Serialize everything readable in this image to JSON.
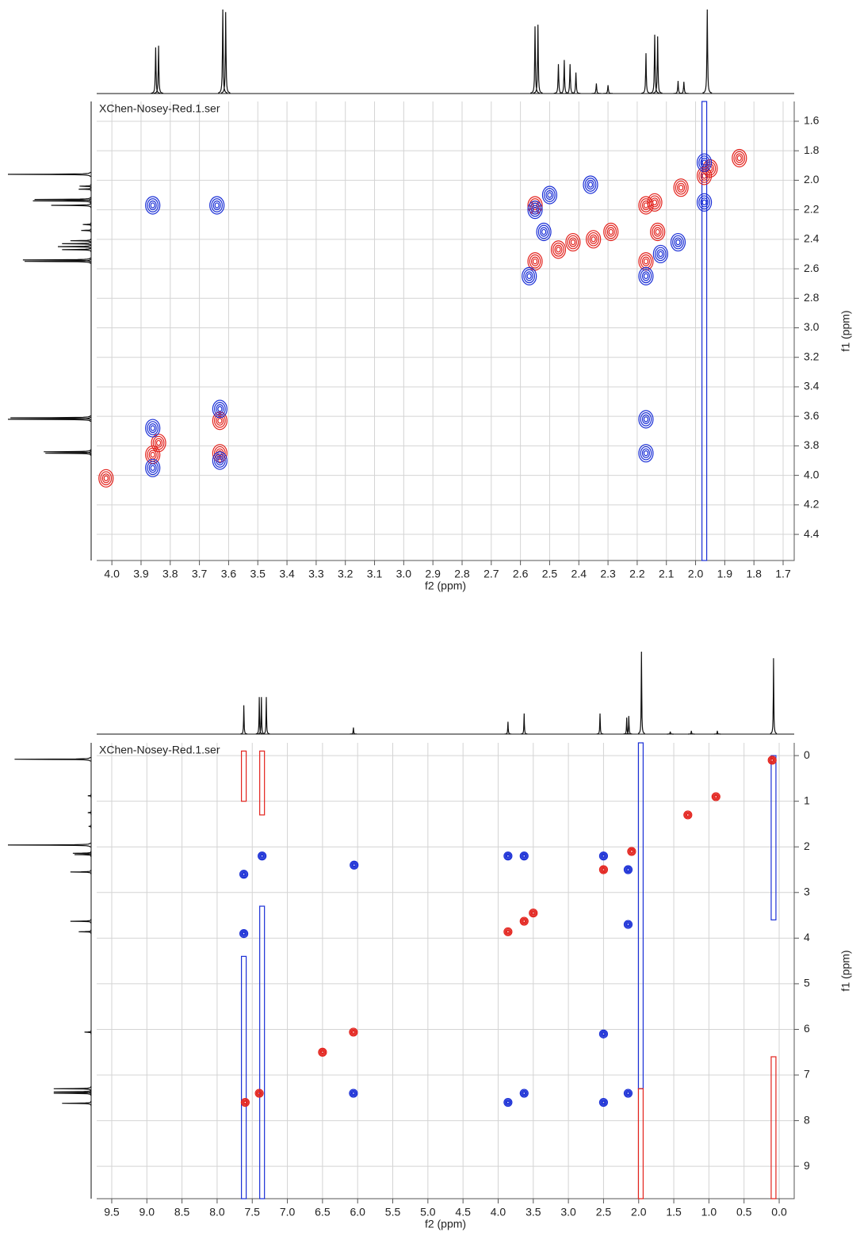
{
  "chart_data": [
    {
      "type": "nmr2d",
      "title": "XChen-Nosey-Red.1.ser",
      "xlabel": "f2 (ppm)",
      "ylabel": "f1 (ppm)",
      "xlim": [
        4.052,
        1.662
      ],
      "ylim": [
        1.466,
        4.577
      ],
      "xticks": [
        {
          "value": 4,
          "label": "4.0"
        },
        3.9,
        3.8,
        3.7,
        3.6,
        3.5,
        3.4,
        3.3,
        3.2,
        3.1,
        {
          "value": 3,
          "label": "3.0"
        },
        2.9,
        2.8,
        2.7,
        2.6,
        2.5,
        2.4,
        2.3,
        2.2,
        2.1,
        {
          "value": 2,
          "label": "2.0"
        },
        1.9,
        1.8,
        1.7
      ],
      "yticks": [
        1.6,
        1.8,
        {
          "value": 2,
          "label": "2.0"
        },
        2.2,
        2.4,
        2.6,
        2.8,
        {
          "value": 3,
          "label": "3.0"
        },
        3.2,
        3.4,
        3.6,
        3.8,
        {
          "value": 4,
          "label": "4.0"
        },
        4.2,
        4.4
      ],
      "grid": true,
      "series": [
        {
          "color": "#e3221c",
          "x": [
            3.86,
            3.63,
            2.55,
            2.47,
            2.42,
            2.35,
            2.29,
            2.17,
            2.14,
            2.05,
            1.97,
            1.95,
            1.85,
            3.84,
            3.63,
            2.55,
            2.17,
            2.13,
            4.02
          ],
          "y": [
            3.86,
            3.63,
            2.55,
            2.47,
            2.42,
            2.4,
            2.35,
            2.17,
            2.15,
            2.05,
            1.97,
            1.92,
            1.85,
            3.78,
            3.85,
            2.17,
            2.55,
            2.35,
            4.02
          ]
        },
        {
          "color": "#1a2fd6",
          "x": [
            3.86,
            3.64,
            3.86,
            3.86,
            3.63,
            3.63,
            2.55,
            2.5,
            2.52,
            2.57,
            2.17,
            2.17,
            2.12,
            2.06,
            2.36,
            2.17,
            1.97,
            1.97
          ],
          "y": [
            2.17,
            2.17,
            3.68,
            3.95,
            3.55,
            3.9,
            2.2,
            2.1,
            2.35,
            2.65,
            3.62,
            3.85,
            2.5,
            2.42,
            2.03,
            2.65,
            1.88,
            2.15
          ]
        }
      ],
      "streaks": [
        {
          "color": "#1a2fd6",
          "x": 1.97,
          "y": [
            1.466,
            4.577
          ]
        }
      ],
      "projection": {
        "color": "#111111",
        "x": [
          3.85,
          3.84,
          3.62,
          3.61,
          2.55,
          2.54,
          2.47,
          2.45,
          2.43,
          2.41,
          2.34,
          2.3,
          2.17,
          2.14,
          2.13,
          2.06,
          2.04,
          1.96
        ],
        "values": [
          0.55,
          0.57,
          1.0,
          0.97,
          0.8,
          0.82,
          0.35,
          0.4,
          0.35,
          0.25,
          0.12,
          0.1,
          0.48,
          0.7,
          0.68,
          0.15,
          0.14,
          1.0
        ]
      }
    },
    {
      "type": "nmr2d",
      "title": "XChen-Nosey-Red.1.ser",
      "xlabel": "f2 (ppm)",
      "ylabel": "f1 (ppm)",
      "xlim": [
        9.714,
        -0.214
      ],
      "ylim": [
        -0.28,
        9.71
      ],
      "xticks": [
        9.5,
        {
          "value": 9,
          "label": "9.0"
        },
        8.5,
        {
          "value": 8,
          "label": "8.0"
        },
        7.5,
        {
          "value": 7,
          "label": "7.0"
        },
        6.5,
        {
          "value": 6,
          "label": "6.0"
        },
        5.5,
        {
          "value": 5,
          "label": "5.0"
        },
        4.5,
        {
          "value": 4,
          "label": "4.0"
        },
        3.5,
        {
          "value": 3,
          "label": "3.0"
        },
        2.5,
        {
          "value": 2,
          "label": "2.0"
        },
        1.5,
        {
          "value": 1,
          "label": "1.0"
        },
        0.5,
        {
          "value": 0,
          "label": "0.0"
        }
      ],
      "yticks": [
        0,
        1,
        2,
        3,
        4,
        5,
        6,
        7,
        8,
        9
      ],
      "grid": true,
      "series": [
        {
          "color": "#e3221c",
          "x": [
            7.6,
            7.4,
            6.06,
            3.86,
            3.63,
            2.5,
            2.1,
            1.3,
            0.9,
            0.1,
            6.5,
            3.5
          ],
          "y": [
            7.6,
            7.4,
            6.06,
            3.86,
            3.63,
            2.5,
            2.1,
            1.3,
            0.9,
            0.1,
            6.5,
            3.45
          ]
        },
        {
          "color": "#1a2fd6",
          "x": [
            7.62,
            7.36,
            6.05,
            3.86,
            3.63,
            2.5,
            2.15,
            7.62,
            6.06,
            3.86,
            3.63,
            2.5,
            2.15,
            2.15,
            2.5
          ],
          "y": [
            2.6,
            2.2,
            2.4,
            2.2,
            2.2,
            2.2,
            2.5,
            3.9,
            7.4,
            7.6,
            7.4,
            7.6,
            7.4,
            3.7,
            6.1
          ]
        }
      ],
      "streaks": [
        {
          "color": "#1a2fd6",
          "x": 7.62,
          "y": [
            4.4,
            9.71
          ]
        },
        {
          "color": "#e3221c",
          "x": 7.62,
          "y": [
            -0.1,
            1.0
          ]
        },
        {
          "color": "#e3221c",
          "x": 7.36,
          "y": [
            -0.1,
            1.3
          ]
        },
        {
          "color": "#1a2fd6",
          "x": 7.36,
          "y": [
            3.3,
            9.71
          ]
        },
        {
          "color": "#1a2fd6",
          "x": 1.97,
          "y": [
            -0.28,
            7.3
          ]
        },
        {
          "color": "#e3221c",
          "x": 1.97,
          "y": [
            7.3,
            9.71
          ]
        },
        {
          "color": "#1a2fd6",
          "x": 0.08,
          "y": [
            0,
            3.6
          ]
        },
        {
          "color": "#e3221c",
          "x": 0.08,
          "y": [
            6.6,
            9.71
          ]
        }
      ],
      "projection": {
        "color": "#111111",
        "x": [
          7.62,
          7.4,
          7.37,
          7.3,
          6.06,
          3.86,
          3.63,
          2.55,
          2.17,
          2.14,
          1.96,
          1.55,
          1.25,
          0.88,
          0.08
        ],
        "values": [
          0.35,
          0.45,
          0.45,
          0.45,
          0.08,
          0.15,
          0.25,
          0.25,
          0.2,
          0.22,
          1.0,
          0.03,
          0.04,
          0.04,
          0.92
        ]
      }
    }
  ]
}
